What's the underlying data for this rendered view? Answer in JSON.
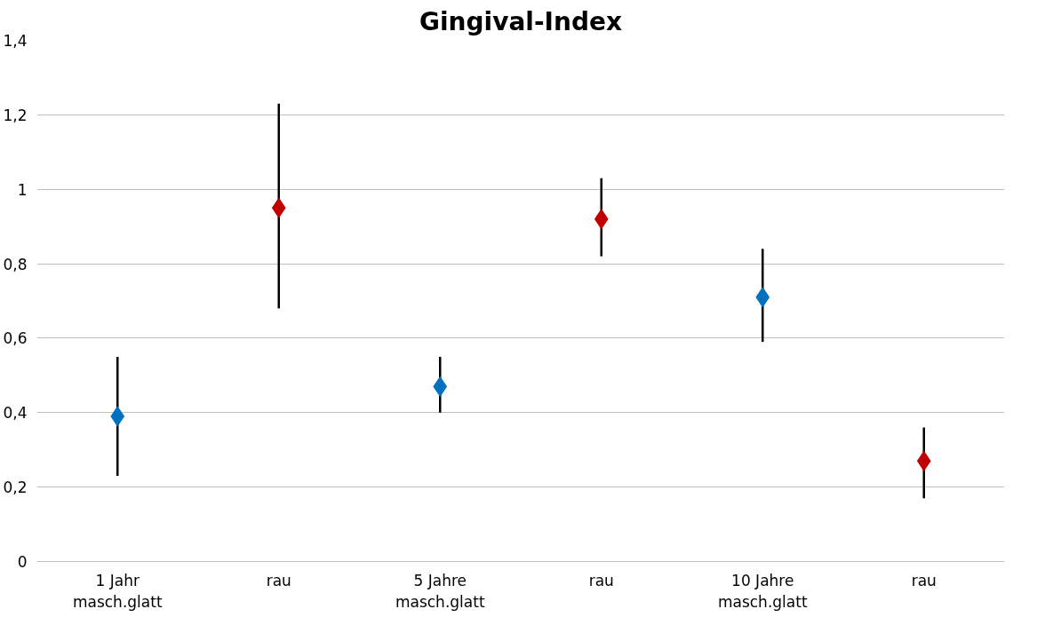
{
  "chart_data": {
    "type": "scatter",
    "title": "Gingival-Index",
    "categories": [
      "1 Jahr\nmasch.glatt",
      "rau",
      "5 Jahre\nmasch.glatt",
      "rau",
      "10 Jahre\nmasch.glatt",
      "rau"
    ],
    "values": [
      0.39,
      0.95,
      0.47,
      0.92,
      0.71,
      0.27
    ],
    "colors": [
      "#0070c0",
      "#c00000",
      "#0070c0",
      "#c00000",
      "#0070c0",
      "#c00000"
    ],
    "errors": [
      [
        0.23,
        0.55
      ],
      [
        0.68,
        1.23
      ],
      [
        0.4,
        0.55
      ],
      [
        0.82,
        1.03
      ],
      [
        0.59,
        0.84
      ],
      [
        0.17,
        0.36
      ]
    ],
    "ylim": [
      0,
      1.4
    ],
    "yticks": [
      0,
      {
        "value": 0.2,
        "label": "0,2"
      },
      {
        "value": 0.4,
        "label": "0,4"
      },
      {
        "value": 0.6,
        "label": "0,6"
      },
      {
        "value": 0.8,
        "label": "0,8"
      },
      1,
      {
        "value": 1.2,
        "label": "1,2"
      },
      {
        "value": 1.4,
        "label": "1,4"
      }
    ],
    "grid": "y",
    "marker": "diamond"
  }
}
